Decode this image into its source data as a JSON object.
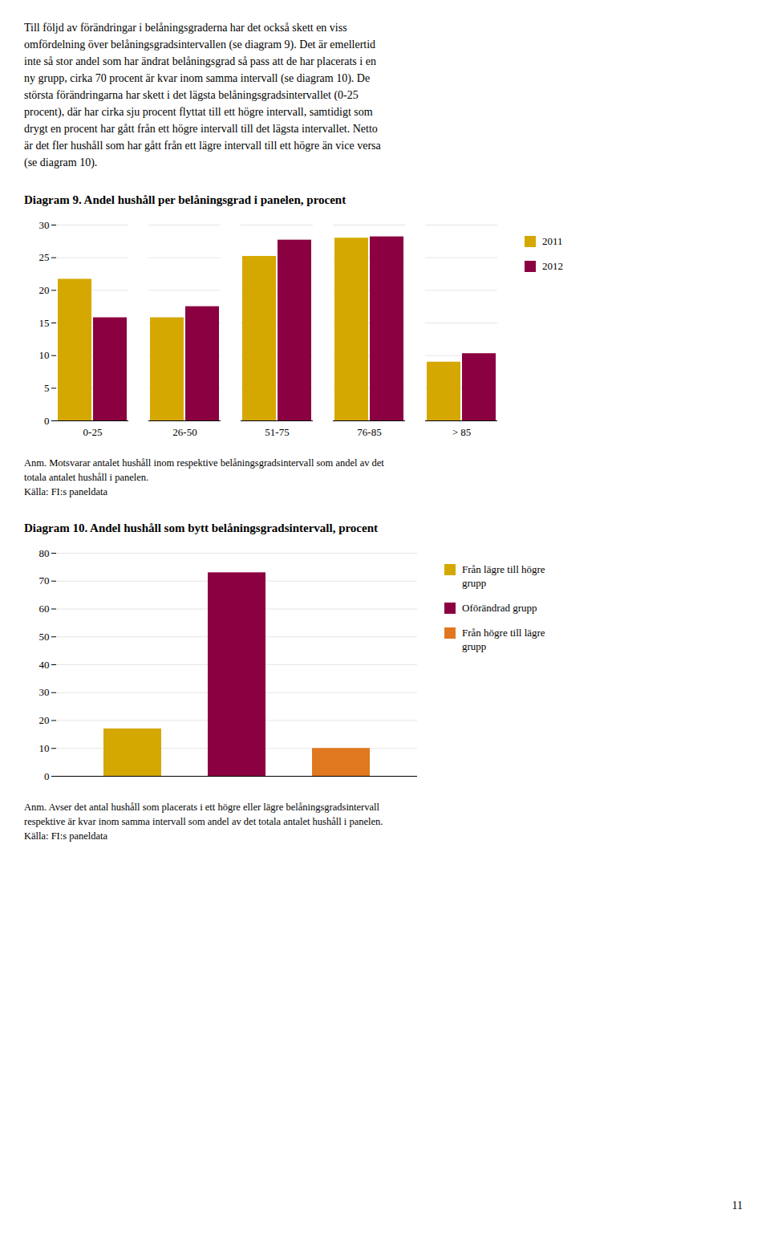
{
  "text": [
    "Till följd av förändringar i belåningsgraderna har det också skett en viss",
    "omfördelning över belåningsgradsintervallen (se diagram 9). Det är emellertid",
    "inte så stor andel som har ändrat belåningsgrad så pass att de har placerats i en",
    "ny grupp, cirka 70 procent är kvar inom samma intervall (se diagram 10). De",
    "största förändringarna har skett i det lägsta belåningsgradsintervallet (0-25",
    "procent), där har cirka sju procent flyttat till ett högre intervall, samtidigt som",
    "drygt en procent har gått från ett högre intervall till det lägsta intervallet. Netto",
    "är det fler hushåll som har gått från ett lägre intervall till ett högre än vice versa",
    "(se diagram 10)."
  ],
  "page_number": "11",
  "chart_data": [
    {
      "type": "bar",
      "title": "Diagram 9. Andel hushåll per belåningsgrad i panelen, procent",
      "categories": [
        "0-25",
        "26-50",
        "51-75",
        "76-85",
        "> 85"
      ],
      "series": [
        {
          "name": "2011",
          "color": "#D4A800",
          "values": [
            21.7,
            15.8,
            25.2,
            28.0,
            9.0
          ]
        },
        {
          "name": "2012",
          "color": "#8B0040",
          "values": [
            15.8,
            17.5,
            27.7,
            28.2,
            10.3
          ]
        }
      ],
      "ylim": [
        0,
        30
      ],
      "yticks": [
        0,
        5,
        10,
        15,
        20,
        25,
        30
      ],
      "grid": true,
      "legend": "right",
      "annotations": [
        "Anm. Motsvarar antalet hushåll inom respektive belåningsgradsintervall som andel av det",
        "totala antalet hushåll i panelen.",
        "Källa: FI:s paneldata"
      ]
    },
    {
      "type": "bar",
      "title": "Diagram 10. Andel hushåll som bytt belåningsgradsintervall, procent",
      "categories": [
        "Från lägre till högre\ngrupp",
        "Oförändrad grupp",
        "Från högre till lägre\ngrupp"
      ],
      "values": [
        17.0,
        73.0,
        10.0
      ],
      "colors": [
        "#D4A800",
        "#8B0040",
        "#E07820"
      ],
      "ylim": [
        0,
        80
      ],
      "yticks": [
        0,
        10,
        20,
        30,
        40,
        50,
        60,
        70,
        80
      ],
      "grid": true,
      "legend": "right",
      "tick_labels": "y",
      "annotations": [
        "Anm. Avser det antal hushåll som placerats i ett högre eller lägre belåningsgradsintervall",
        "respektive är kvar inom samma intervall som andel av det totala antalet hushåll i panelen.",
        "Källa: FI:s paneldata"
      ]
    }
  ]
}
